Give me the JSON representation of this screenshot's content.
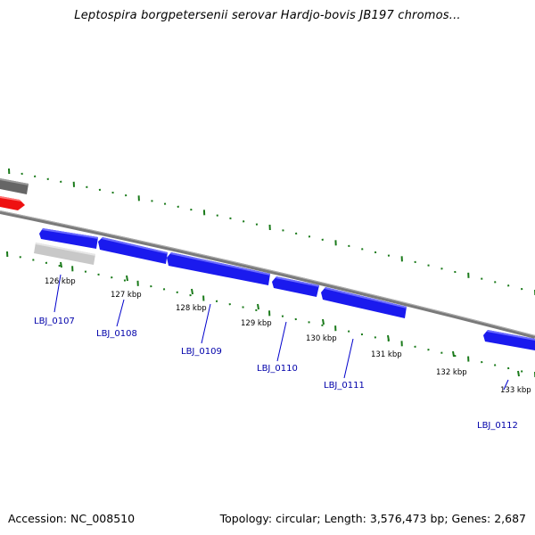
{
  "header": {
    "title": "Leptospira borgpetersenii serovar Hardjo-bovis JB197 chromos..."
  },
  "footer": {
    "accession": "Accession: NC_008510",
    "summary": "Topology: circular; Length: 3,576,473 bp; Genes: 2,687"
  },
  "colors": {
    "backbone": "#7a7a7a",
    "gene_forward": "#1a1aee",
    "tick": "#1a7a1a",
    "highlight": "#ee1111",
    "feature_dark": "#666666",
    "feature_light": "#c8c8c8",
    "label": "#0000aa"
  },
  "kbp_labels": [
    "126 kbp",
    "127 kbp",
    "128 kbp",
    "129 kbp",
    "130 kbp",
    "131 kbp",
    "132 kbp",
    "133 kbp"
  ],
  "genes": [
    "LBJ_0107",
    "LBJ_0108",
    "LBJ_0109",
    "LBJ_0110",
    "LBJ_0111",
    "LBJ_0112"
  ]
}
